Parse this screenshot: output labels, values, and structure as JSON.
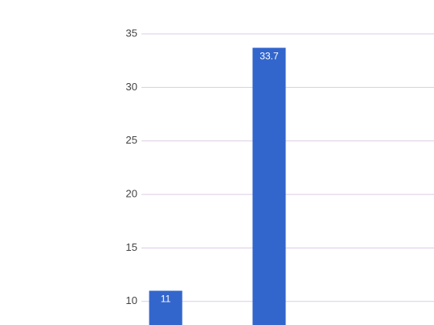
{
  "chart_data": {
    "type": "bar",
    "categories": [
      null,
      null
    ],
    "values": [
      11,
      33.7
    ],
    "color": "#3366cc",
    "ylim": [
      7.8,
      35
    ],
    "yticks": [
      10,
      15,
      20,
      25,
      30,
      35
    ],
    "grid": true
  }
}
